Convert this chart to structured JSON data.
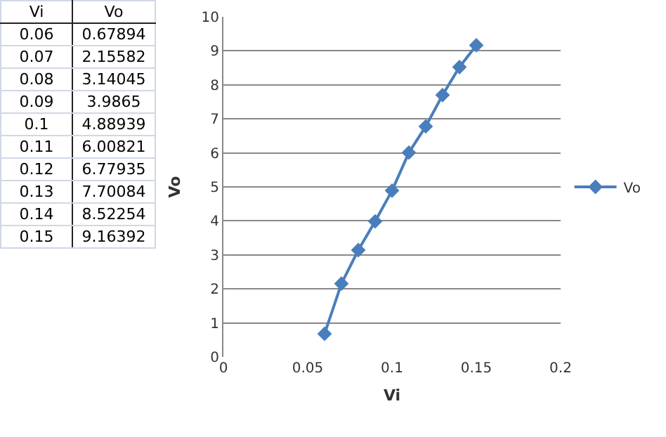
{
  "chart_data": [
    {
      "type": "heatmap",
      "ylabel": "Vi",
      "categories": [
        "Vo"
      ],
      "y_categories": [
        "0.06",
        "0.07",
        "0.08",
        "0.09",
        "0.1",
        "0.11",
        "0.12",
        "0.13",
        "0.14",
        "0.15"
      ],
      "cells": [
        [
          0.67894
        ],
        [
          2.15582
        ],
        [
          3.14045
        ],
        [
          3.9865
        ],
        [
          4.88939
        ],
        [
          6.00821
        ],
        [
          6.77935
        ],
        [
          7.70084
        ],
        [
          8.52254
        ],
        [
          9.16392
        ]
      ],
      "data_labels": true
    },
    {
      "type": "line",
      "xlabel": "Vi",
      "ylabel": "Vo",
      "x": [
        0.06,
        0.07,
        0.08,
        0.09,
        0.1,
        0.11,
        0.12,
        0.13,
        0.14,
        0.15
      ],
      "series": [
        {
          "name": "Vo",
          "color": "#4a7ebb",
          "values": [
            0.67894,
            2.15582,
            3.14045,
            3.9865,
            4.88939,
            6.00821,
            6.77935,
            7.70084,
            8.52254,
            9.16392
          ]
        }
      ],
      "xlim": [
        0,
        0.2
      ],
      "xticks": [
        0,
        0.05,
        0.1,
        0.15,
        0.2
      ],
      "ylim": [
        0,
        10
      ],
      "yticks": [
        0,
        1,
        2,
        3,
        4,
        5,
        6,
        7,
        8,
        9,
        10
      ],
      "grid": "y",
      "legend": "right",
      "marker": "diamond",
      "line_style": "solid"
    }
  ]
}
